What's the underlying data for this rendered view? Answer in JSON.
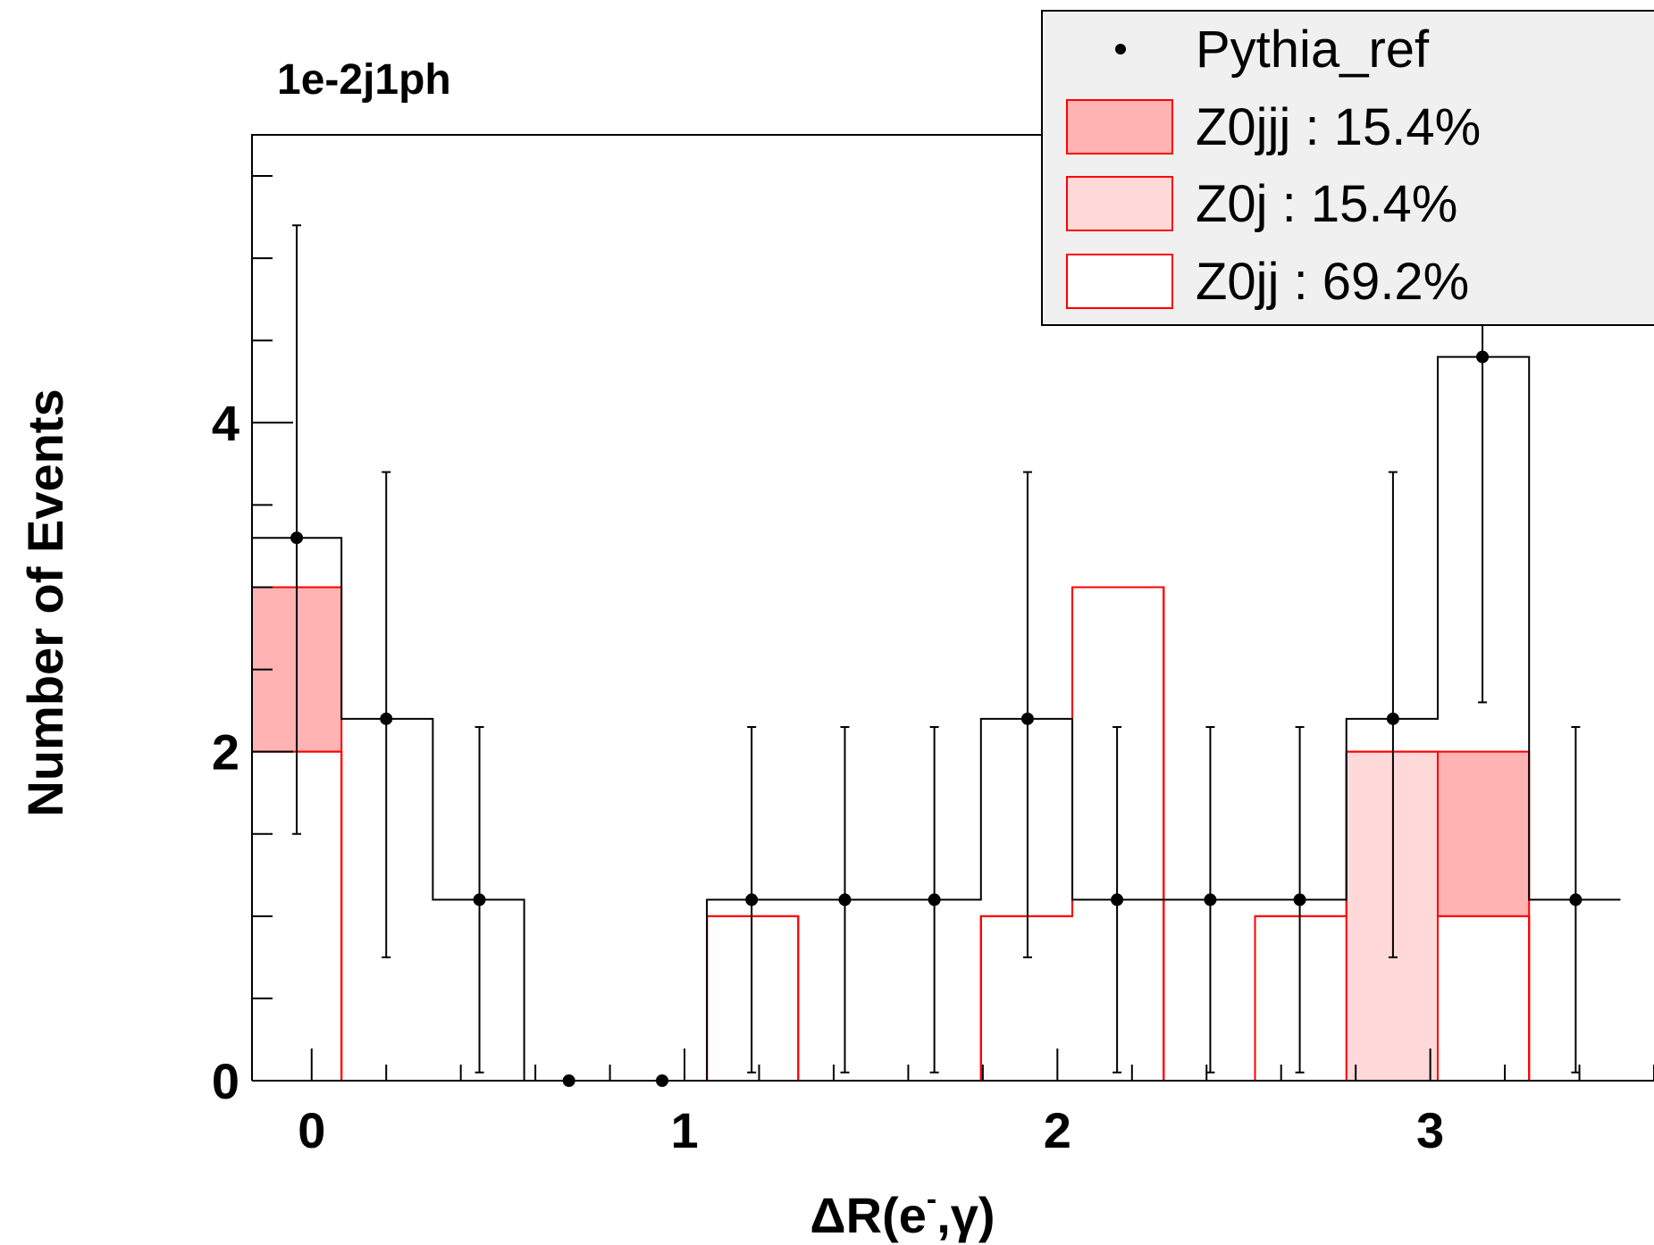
{
  "chart_data": {
    "type": "histogram",
    "title": "1e-2j1ph",
    "xlabel_main": "ΔR(e",
    "xlabel_sup": "-",
    "xlabel_tail": ",γ)",
    "ylabel": "Number of Events",
    "xlim": [
      -0.16,
      3.6
    ],
    "ylim": [
      0,
      5.75
    ],
    "x_ticks": [
      {
        "value": 0,
        "label": "0"
      },
      {
        "value": 1,
        "label": "1"
      },
      {
        "value": 2,
        "label": "2"
      },
      {
        "value": 3,
        "label": "3"
      }
    ],
    "y_ticks": [
      {
        "value": 0,
        "label": "0"
      },
      {
        "value": 2,
        "label": "2"
      },
      {
        "value": 4,
        "label": "4"
      }
    ],
    "bin_edges": [
      -0.16,
      0.08,
      0.325,
      0.57,
      0.815,
      1.06,
      1.305,
      1.55,
      1.795,
      2.04,
      2.285,
      2.53,
      2.775,
      3.02,
      3.265,
      3.51
    ],
    "points": {
      "name": "Pythia_ref",
      "x": [
        -0.04,
        0.2,
        0.45,
        0.69,
        0.94,
        1.18,
        1.43,
        1.67,
        1.92,
        2.16,
        2.41,
        2.65,
        2.9,
        3.14,
        3.39
      ],
      "y": [
        3.3,
        2.2,
        1.1,
        0,
        0,
        1.1,
        1.1,
        1.1,
        2.2,
        1.1,
        1.1,
        1.1,
        2.2,
        4.4,
        1.1
      ],
      "err_low": [
        1.8,
        1.45,
        1.05,
        0,
        0,
        1.05,
        1.05,
        1.05,
        1.45,
        1.05,
        1.05,
        1.05,
        1.45,
        2.1,
        1.05
      ],
      "err_high": [
        1.9,
        1.5,
        1.05,
        0,
        0,
        1.05,
        1.05,
        1.05,
        1.5,
        1.05,
        1.05,
        1.05,
        1.5,
        2.1,
        1.05
      ]
    },
    "stack": {
      "Z0jj": [
        2,
        0,
        0,
        0,
        0,
        1,
        0,
        0,
        1,
        3,
        0,
        1,
        0,
        1,
        0
      ],
      "Z0j": [
        0,
        0,
        0,
        0,
        0,
        0,
        0,
        0,
        0,
        0,
        0,
        0,
        2,
        0,
        0
      ],
      "Z0jjj": [
        1,
        0,
        0,
        0,
        0,
        0,
        0,
        0,
        0,
        0,
        0,
        0,
        0,
        1,
        0
      ]
    },
    "stack_order": [
      "Z0jj",
      "Z0j",
      "Z0jjj"
    ],
    "total": [
      3.3,
      2.2,
      1.1,
      0,
      0,
      1.1,
      1.1,
      1.1,
      2.2,
      1.1,
      1.1,
      1.1,
      2.2,
      4.4,
      1.1
    ],
    "legend": {
      "placement": "top-right",
      "entries": [
        {
          "label": "Pythia_ref",
          "style": "marker"
        },
        {
          "label": "Z0jjj : 15.4%",
          "style": "fill",
          "fill": "#ffb3b3",
          "stroke": "#ff0000"
        },
        {
          "label": "Z0j : 15.4%",
          "style": "fill",
          "fill": "#ffd9d9",
          "stroke": "#ff0000"
        },
        {
          "label": "Z0jj : 69.2%",
          "style": "fill",
          "fill": "#ffffff",
          "stroke": "#ff0000"
        }
      ]
    },
    "colors": {
      "Z0jjj": "#ffb3b3",
      "Z0j": "#ffd9d9",
      "Z0jj": "#ffffff",
      "mc_line": "#ff0000",
      "data": "#000000",
      "legend_bg": "#f0f0f0"
    }
  }
}
